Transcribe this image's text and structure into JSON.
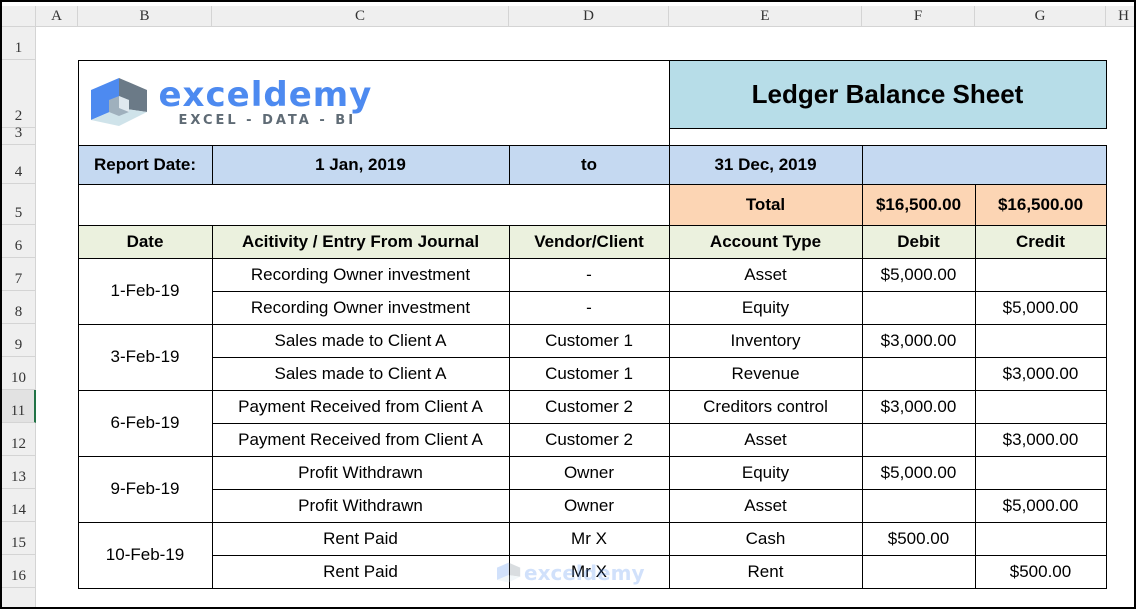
{
  "columns": [
    "A",
    "B",
    "C",
    "D",
    "E",
    "F",
    "G",
    "H"
  ],
  "rows": [
    "1",
    "2",
    "3",
    "4",
    "5",
    "6",
    "7",
    "8",
    "9",
    "10",
    "11",
    "12",
    "13",
    "14",
    "15",
    "16"
  ],
  "logo": {
    "name": "exceldemy",
    "tagline": "EXCEL - DATA - BI"
  },
  "title": "Ledger Balance Sheet",
  "report": {
    "label": "Report Date:",
    "start": "1 Jan, 2019",
    "to": "to",
    "end": "31 Dec, 2019"
  },
  "totals": {
    "label": "Total",
    "debit": "$16,500.00",
    "credit": "$16,500.00"
  },
  "headers": [
    "Date",
    "Acitivity / Entry From Journal",
    "Vendor/Client",
    "Account Type",
    "Debit",
    "Credit"
  ],
  "groups": [
    {
      "date": "1-Feb-19",
      "entries": [
        {
          "activity": "Recording Owner investment",
          "vendor": "-",
          "account": "Asset",
          "debit": "$5,000.00",
          "credit": ""
        },
        {
          "activity": "Recording Owner investment",
          "vendor": "-",
          "account": "Equity",
          "debit": "",
          "credit": "$5,000.00"
        }
      ]
    },
    {
      "date": "3-Feb-19",
      "entries": [
        {
          "activity": "Sales made to Client A",
          "vendor": "Customer 1",
          "account": "Inventory",
          "debit": "$3,000.00",
          "credit": ""
        },
        {
          "activity": "Sales made to Client A",
          "vendor": "Customer 1",
          "account": "Revenue",
          "debit": "",
          "credit": "$3,000.00"
        }
      ]
    },
    {
      "date": "6-Feb-19",
      "entries": [
        {
          "activity": "Payment Received from Client A",
          "vendor": "Customer 2",
          "account": "Creditors control",
          "debit": "$3,000.00",
          "credit": ""
        },
        {
          "activity": "Payment Received from Client A",
          "vendor": "Customer 2",
          "account": "Asset",
          "debit": "",
          "credit": "$3,000.00"
        }
      ]
    },
    {
      "date": "9-Feb-19",
      "entries": [
        {
          "activity": "Profit Withdrawn",
          "vendor": "Owner",
          "account": "Equity",
          "debit": "$5,000.00",
          "credit": ""
        },
        {
          "activity": "Profit Withdrawn",
          "vendor": "Owner",
          "account": "Asset",
          "debit": "",
          "credit": "$5,000.00"
        }
      ]
    },
    {
      "date": "10-Feb-19",
      "entries": [
        {
          "activity": "Rent Paid",
          "vendor": "Mr X",
          "account": "Cash",
          "debit": "$500.00",
          "credit": ""
        },
        {
          "activity": "Rent Paid",
          "vendor": "Mr X",
          "account": "Rent",
          "debit": "",
          "credit": "$500.00"
        }
      ]
    }
  ],
  "colors": {
    "title_bg": "#b7dde8",
    "report_bg": "#c5d9f1",
    "total_bg": "#fcd5b4",
    "header_bg": "#ebf1de",
    "logo_blue": "#4d8af0",
    "selected_row": "#217346"
  }
}
